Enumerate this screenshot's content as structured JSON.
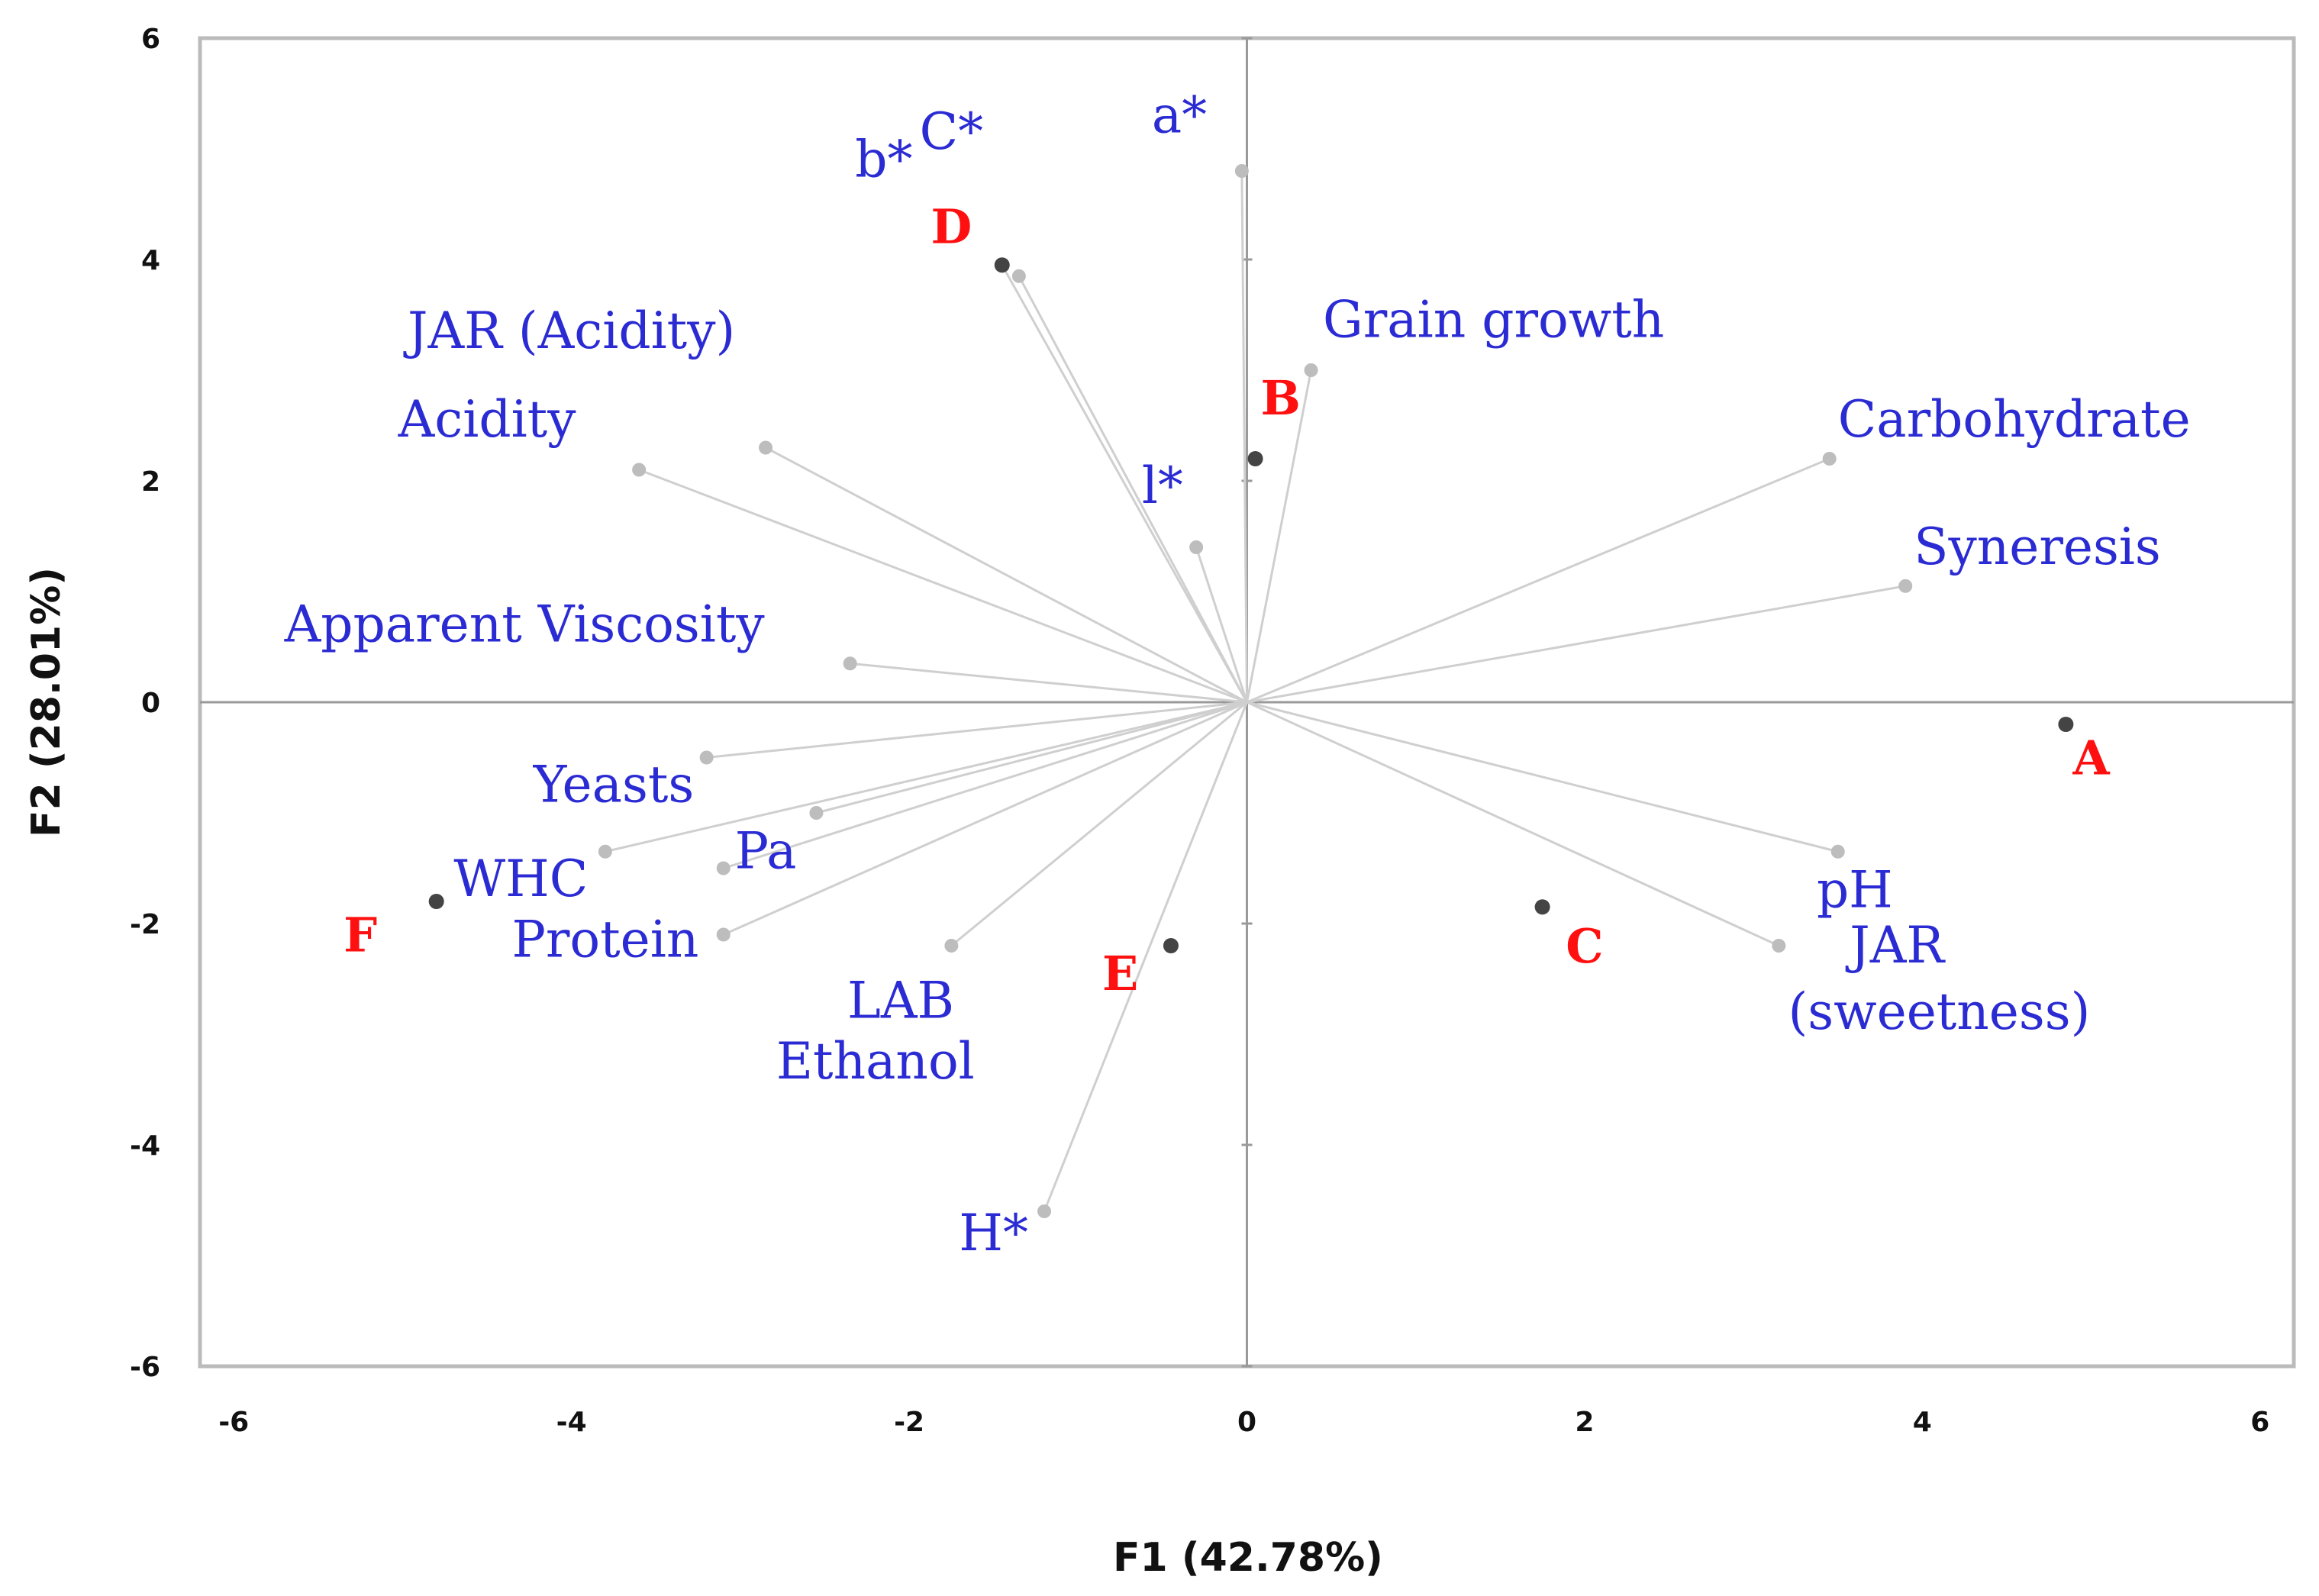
{
  "chart_data": {
    "type": "scatter",
    "subtype": "pca-biplot",
    "xlabel": "F1 (42.78%)",
    "ylabel": "F2 (28.01%)",
    "xlim": [
      -6.2,
      6.2
    ],
    "ylim": [
      -6.0,
      6.0
    ],
    "x_ticks": [
      -6,
      -4,
      -2,
      0,
      2,
      4,
      6
    ],
    "y_ticks": [
      -6,
      -4,
      -2,
      0,
      2,
      4,
      6
    ],
    "colors": {
      "variables": "#2b2bd4",
      "observations": "#ff1010",
      "vector": "#cfcfcf",
      "variable_point": "#bdbdbd",
      "observation_point": "#444444",
      "frame": "#bbbbbb",
      "zero_axis": "#9a9a9a"
    },
    "variables": [
      {
        "name": "b*",
        "x": -1.45,
        "y": 3.95,
        "label_pos": [
          -2.15,
          4.75
        ],
        "anchor": "middle"
      },
      {
        "name": "C*",
        "x": -1.35,
        "y": 3.85,
        "label_pos": [
          -1.75,
          5.0
        ],
        "anchor": "middle"
      },
      {
        "name": "a*",
        "x": -0.03,
        "y": 4.8,
        "label_pos": [
          -0.4,
          5.15
        ],
        "anchor": "middle"
      },
      {
        "name": "JAR (Acidity)",
        "x": -2.85,
        "y": 2.3,
        "label_pos": [
          -4.0,
          3.2
        ],
        "anchor": "middle"
      },
      {
        "name": "Acidity",
        "x": -3.6,
        "y": 2.1,
        "label_pos": [
          -4.5,
          2.4
        ],
        "anchor": "middle"
      },
      {
        "name": "Grain growth",
        "x": 0.38,
        "y": 3.0,
        "label_pos": [
          0.45,
          3.3
        ],
        "anchor": "start"
      },
      {
        "name": "l*",
        "x": -0.3,
        "y": 1.4,
        "label_pos": [
          -0.5,
          1.8
        ],
        "anchor": "middle"
      },
      {
        "name": "Carbohydrate",
        "x": 3.45,
        "y": 2.2,
        "label_pos": [
          3.5,
          2.4
        ],
        "anchor": "start"
      },
      {
        "name": "Syneresis",
        "x": 3.9,
        "y": 1.05,
        "label_pos": [
          3.95,
          1.25
        ],
        "anchor": "start"
      },
      {
        "name": "Apparent Viscosity",
        "x": -2.35,
        "y": 0.35,
        "label_pos": [
          -5.7,
          0.55
        ],
        "anchor": "start"
      },
      {
        "name": "Yeasts",
        "x": -3.2,
        "y": -0.5,
        "label_pos": [
          -3.75,
          -0.9
        ],
        "anchor": "middle"
      },
      {
        "name": "Pa",
        "x": -2.55,
        "y": -1.0,
        "label_pos": [
          -2.85,
          -1.5
        ],
        "anchor": "middle"
      },
      {
        "name": "WHC",
        "x": -3.8,
        "y": -1.35,
        "label_pos": [
          -4.3,
          -1.75
        ],
        "anchor": "middle"
      },
      {
        "name": "Protein",
        "x": -3.1,
        "y": -1.5,
        "label_pos": [
          -3.8,
          -2.3
        ],
        "anchor": "middle"
      },
      {
        "name": "LAB",
        "x": -1.75,
        "y": -2.2,
        "label_pos": [
          -2.05,
          -2.85
        ],
        "anchor": "middle"
      },
      {
        "name": "Ethanol",
        "x": -3.1,
        "y": -2.1,
        "label_pos": [
          -2.2,
          -3.4
        ],
        "anchor": "middle"
      },
      {
        "name": "H*",
        "x": -1.2,
        "y": -4.6,
        "label_pos": [
          -1.5,
          -4.95
        ],
        "anchor": "middle"
      },
      {
        "name": "pH",
        "x": 3.5,
        "y": -1.35,
        "label_pos": [
          3.6,
          -1.85
        ],
        "anchor": "middle"
      },
      {
        "name": "JAR",
        "x": 3.15,
        "y": -2.2,
        "label_pos": [
          3.85,
          -2.35
        ],
        "anchor": "middle"
      },
      {
        "name": "(sweetness)",
        "label_pos": [
          4.1,
          -2.95
        ],
        "anchor": "middle"
      }
    ],
    "observations": [
      {
        "name": "A",
        "x": 4.85,
        "y": -0.2,
        "label_pos": [
          5.0,
          -0.65
        ]
      },
      {
        "name": "B",
        "x": 0.05,
        "y": 2.2,
        "label_pos": [
          0.2,
          2.6
        ]
      },
      {
        "name": "C",
        "x": 1.75,
        "y": -1.85,
        "label_pos": [
          2.0,
          -2.35
        ]
      },
      {
        "name": "D",
        "x": -1.45,
        "y": 3.95,
        "label_pos": [
          -1.75,
          4.15
        ]
      },
      {
        "name": "E",
        "x": -0.45,
        "y": -2.2,
        "label_pos": [
          -0.75,
          -2.6
        ]
      },
      {
        "name": "F",
        "x": -4.8,
        "y": -1.8,
        "label_pos": [
          -5.25,
          -2.25
        ]
      }
    ]
  }
}
